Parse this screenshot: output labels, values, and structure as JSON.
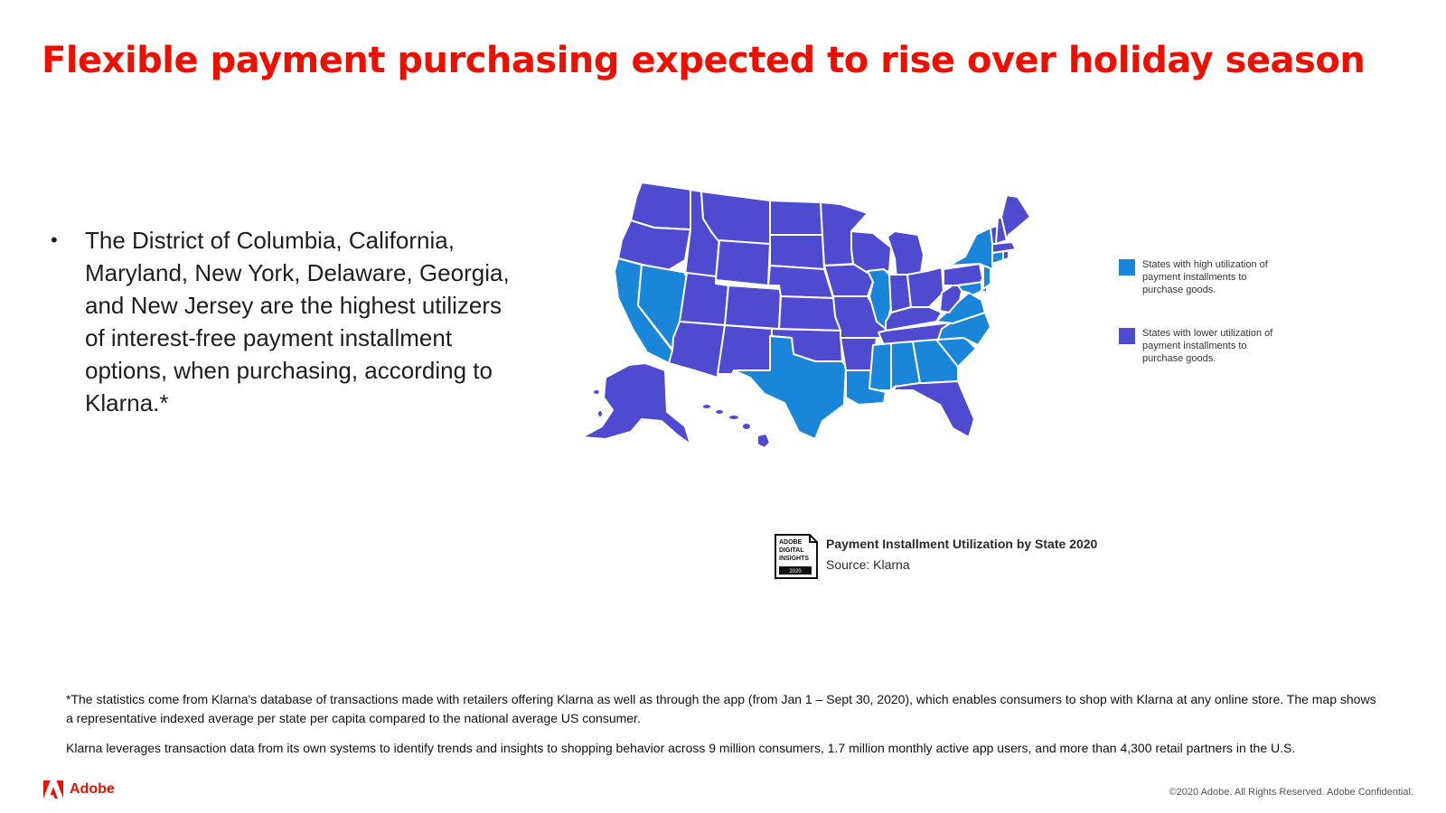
{
  "title": "Flexible payment purchasing expected to rise over holiday season",
  "bullets": [
    "The District of Columbia, California, Maryland, New York, Delaware, Georgia, and New Jersey are the highest utilizers of interest-free payment installment options, when purchasing, according to Klarna.*"
  ],
  "colors": {
    "accent": "#eb1000",
    "high_utilization": "#1a86da",
    "lower_utilization": "#4e4bd1"
  },
  "map": {
    "high_utilization_states": [
      "California",
      "Nevada",
      "Texas",
      "Louisiana",
      "Mississippi",
      "Alabama",
      "Georgia",
      "South Carolina",
      "North Carolina",
      "Virginia",
      "Illinois",
      "New York",
      "New Jersey",
      "Delaware",
      "Maryland",
      "District of Columbia",
      "Connecticut"
    ],
    "lower_utilization_states": [
      "Washington",
      "Oregon",
      "Idaho",
      "Montana",
      "Wyoming",
      "Utah",
      "Arizona",
      "Colorado",
      "New Mexico",
      "North Dakota",
      "South Dakota",
      "Nebraska",
      "Kansas",
      "Oklahoma",
      "Minnesota",
      "Iowa",
      "Missouri",
      "Arkansas",
      "Wisconsin",
      "Michigan",
      "Indiana",
      "Ohio",
      "Kentucky",
      "Tennessee",
      "West Virginia",
      "Pennsylvania",
      "Florida",
      "Vermont",
      "New Hampshire",
      "Maine",
      "Massachusetts",
      "Rhode Island",
      "Alaska",
      "Hawaii"
    ]
  },
  "legend": [
    {
      "label": "States with high utilization of payment installments to purchase goods.",
      "icon": "square-swatch"
    },
    {
      "label": "States with lower utilization of payment installments to purchase goods.",
      "icon": "square-swatch"
    }
  ],
  "badge": {
    "line1": "ADOBE",
    "line2": "DIGITAL",
    "line3": "INSIGHTS",
    "year": "2020"
  },
  "caption": {
    "title": "Payment Installment Utilization by State 2020",
    "source": "Source: Klarna"
  },
  "footnotes": [
    "*The statistics come from Klarna's database of transactions made with retailers offering Klarna as well as through the app (from Jan 1 – Sept 30, 2020), which enables consumers to shop with Klarna at any online store. The map shows a representative indexed average per state per capita compared to the national average US consumer.",
    "Klarna leverages transaction data from its own systems to identify trends and insights to shopping behavior across 9 million consumers, 1.7 million monthly active app users, and more than 4,300 retail partners in the U.S."
  ],
  "brand": {
    "name": "Adobe",
    "copyright": "©2020 Adobe. All Rights Reserved. Adobe Confidential."
  }
}
